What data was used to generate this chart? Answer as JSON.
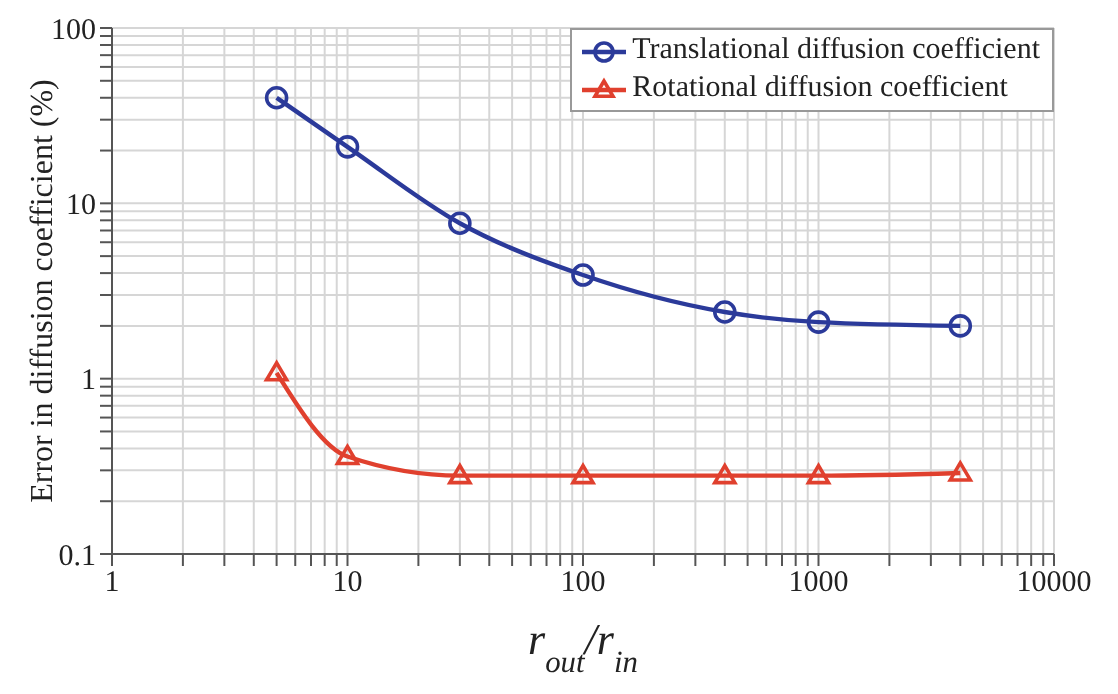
{
  "chart_data": {
    "type": "line",
    "xlabel": "r$_{out}$/r$_{in}$",
    "ylabel": "Error in diffusion coefficient (%)",
    "log": "xy",
    "grid": true,
    "legend": "top right",
    "line_style": "solid",
    "x": [
      5,
      10,
      30,
      100,
      400,
      1000,
      4000
    ],
    "series": [
      {
        "name": "Translational diffusion coefficient",
        "color": "#2b3a9a",
        "marker": "circle",
        "values": [
          40,
          21,
          7.7,
          3.9,
          2.4,
          2.1,
          2.0
        ]
      },
      {
        "name": "Rotational diffusion coefficient",
        "color": "#e0402e",
        "marker": "triangle",
        "values": [
          1.08,
          0.36,
          0.28,
          0.28,
          0.28,
          0.28,
          0.29
        ]
      }
    ],
    "xlim": [
      1,
      10000
    ],
    "xticks": [
      1,
      {
        "value": 2,
        "label": null
      },
      {
        "value": 3,
        "label": null
      },
      {
        "value": 4,
        "label": null
      },
      {
        "value": 5,
        "label": null
      },
      {
        "value": 6,
        "label": null
      },
      {
        "value": 7,
        "label": null
      },
      {
        "value": 8,
        "label": null
      },
      {
        "value": 9,
        "label": null
      },
      10,
      {
        "value": 20,
        "label": null
      },
      {
        "value": 30,
        "label": null
      },
      {
        "value": 40,
        "label": null
      },
      {
        "value": 50,
        "label": null
      },
      {
        "value": 60,
        "label": null
      },
      {
        "value": 70,
        "label": null
      },
      {
        "value": 80,
        "label": null
      },
      {
        "value": 90,
        "label": null
      },
      100,
      {
        "value": 200,
        "label": null
      },
      {
        "value": 300,
        "label": null
      },
      {
        "value": 400,
        "label": null
      },
      {
        "value": 500,
        "label": null
      },
      {
        "value": 600,
        "label": null
      },
      {
        "value": 700,
        "label": null
      },
      {
        "value": 800,
        "label": null
      },
      {
        "value": 900,
        "label": null
      },
      1000,
      {
        "value": 2000,
        "label": null
      },
      {
        "value": 3000,
        "label": null
      },
      {
        "value": 4000,
        "label": null
      },
      {
        "value": 5000,
        "label": null
      },
      {
        "value": 6000,
        "label": null
      },
      {
        "value": 7000,
        "label": null
      },
      {
        "value": 8000,
        "label": null
      },
      {
        "value": 9000,
        "label": null
      },
      10000
    ],
    "ylim": [
      0.1,
      100
    ],
    "yticks": [
      0.1,
      {
        "value": 0.2,
        "label": null
      },
      {
        "value": 0.3,
        "label": null
      },
      {
        "value": 0.4,
        "label": null
      },
      {
        "value": 0.5,
        "label": null
      },
      {
        "value": 0.6,
        "label": null
      },
      {
        "value": 0.7,
        "label": null
      },
      {
        "value": 0.8,
        "label": null
      },
      {
        "value": 0.9,
        "label": null
      },
      1,
      {
        "value": 2,
        "label": null
      },
      {
        "value": 3,
        "label": null
      },
      {
        "value": 4,
        "label": null
      },
      {
        "value": 5,
        "label": null
      },
      {
        "value": 6,
        "label": null
      },
      {
        "value": 7,
        "label": null
      },
      {
        "value": 8,
        "label": null
      },
      {
        "value": 9,
        "label": null
      },
      10,
      {
        "value": 20,
        "label": null
      },
      {
        "value": 30,
        "label": null
      },
      {
        "value": 40,
        "label": null
      },
      {
        "value": 50,
        "label": null
      },
      {
        "value": 60,
        "label": null
      },
      {
        "value": 70,
        "label": null
      },
      {
        "value": 80,
        "label": null
      },
      {
        "value": 90,
        "label": null
      },
      100
    ]
  }
}
